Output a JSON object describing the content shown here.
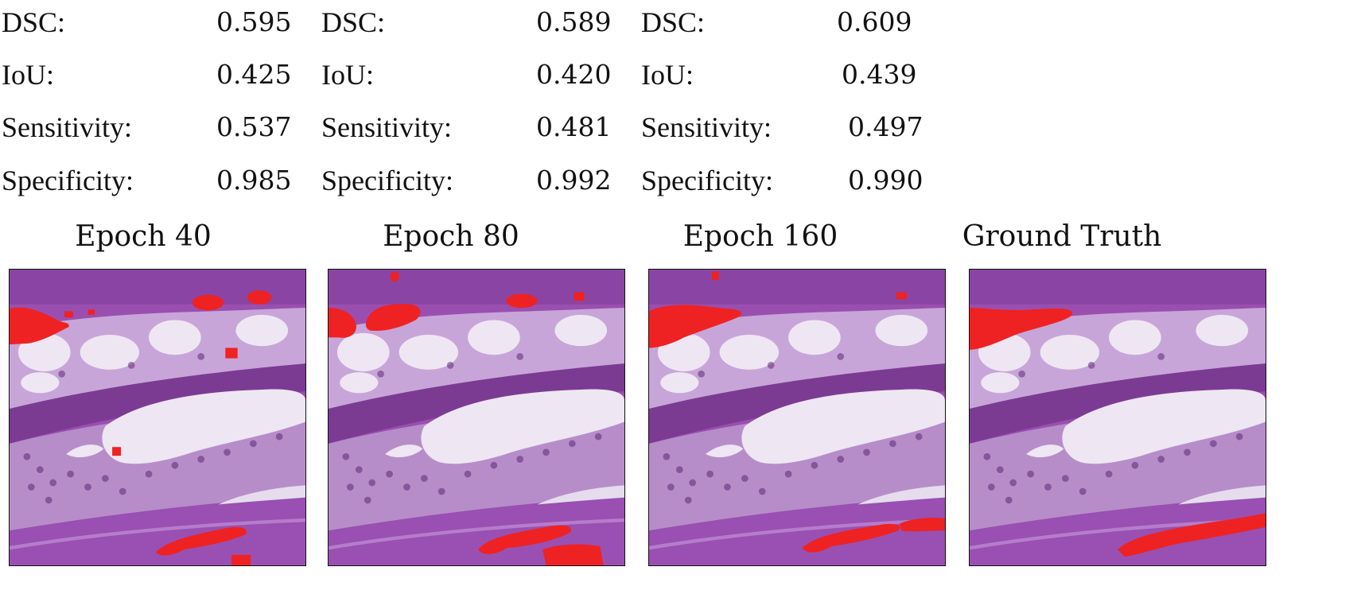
{
  "panels": [
    {
      "metrics": [
        {
          "label": "DSC:",
          "value": "0.595"
        },
        {
          "label": "IoU:",
          "value": "0.425"
        },
        {
          "label": "Sensitivity:",
          "value": "0.537"
        },
        {
          "label": "Specificity:",
          "value": "0.985"
        }
      ],
      "title": "Epoch 40"
    },
    {
      "metrics": [
        {
          "label": "DSC:",
          "value": "0.589"
        },
        {
          "label": "IoU:",
          "value": "0.420"
        },
        {
          "label": "Sensitivity:",
          "value": "0.481"
        },
        {
          "label": "Specificity:",
          "value": "0.992"
        }
      ],
      "title": "Epoch 80"
    },
    {
      "metrics": [
        {
          "label": "DSC:",
          "value": "0.609"
        },
        {
          "label": "IoU:",
          "value": "0.439"
        },
        {
          "label": "Sensitivity:",
          "value": "0.497"
        },
        {
          "label": "Specificity:",
          "value": "0.990"
        }
      ],
      "title": "Epoch 160"
    },
    {
      "title": "Ground Truth"
    }
  ],
  "colors": {
    "tissue": "#9a4fb0",
    "tissue_dark": "#7c3b93",
    "lumen": "#ece3f0",
    "mask": "#ee2222"
  }
}
